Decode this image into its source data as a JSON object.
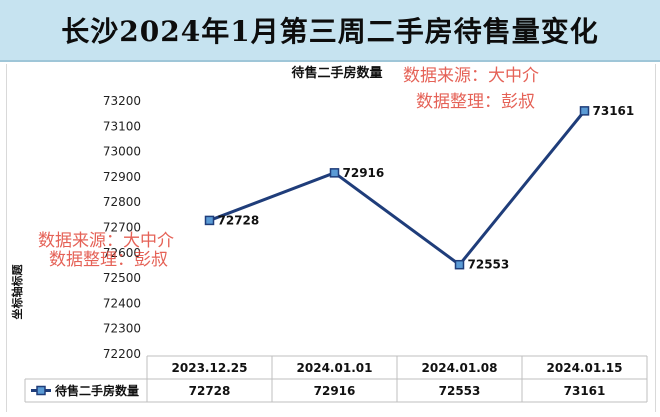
{
  "page": {
    "title": "长沙2024年1月第三周二手房待售量变化"
  },
  "watermark": {
    "line1": "数据来源：大中介",
    "line2": "数据整理：彭叔"
  },
  "chart_data": {
    "type": "line",
    "title": "待售二手房数量",
    "ylabel": "坐标轴标题",
    "xlabel": "",
    "categories": [
      "2023.12.25",
      "2024.01.01",
      "2024.01.08",
      "2024.01.15"
    ],
    "series": [
      {
        "name": "待售二手房数量",
        "values": [
          72728,
          72916,
          72553,
          73161
        ]
      }
    ],
    "ylim": [
      72200,
      73200
    ],
    "yticks": [
      72200,
      72300,
      72400,
      72500,
      72600,
      72700,
      72800,
      72900,
      73000,
      73100,
      73200
    ],
    "yticklabels": [
      "72200",
      "72300",
      "72400",
      "72500",
      "72600",
      "72700",
      "72800",
      "72900",
      "73000",
      "73100",
      "73200"
    ],
    "data_labels": [
      "72728",
      "72916",
      "72553",
      "73161"
    ],
    "table_values": [
      "72728",
      "72916",
      "72553",
      "73161"
    ],
    "grid": false,
    "legend": "data-table",
    "line_color": "#1f3d7a",
    "marker_fill": "#5b9bd5"
  }
}
